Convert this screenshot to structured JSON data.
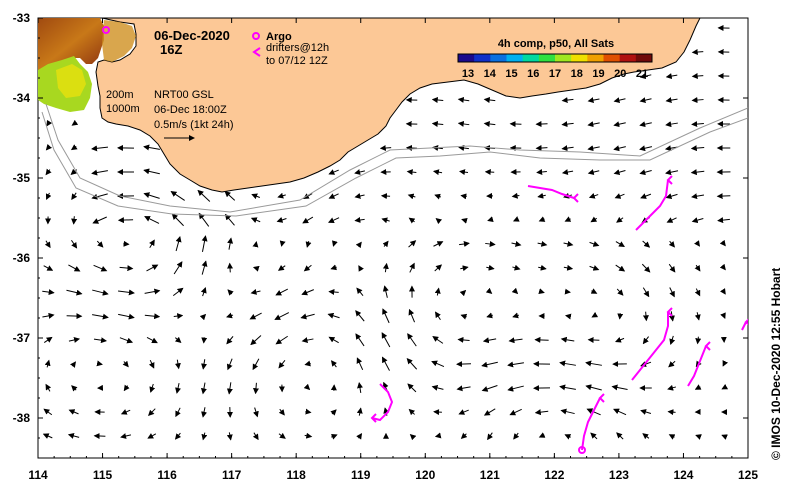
{
  "title": {
    "date": "06-Dec-2020",
    "hour": "16Z"
  },
  "legend": {
    "argo_label": "Argo",
    "drifters_line1": "drifters@12h",
    "drifters_line2": "to 07/12 12Z",
    "argo_color": "#ff00ff"
  },
  "info": {
    "isobath_1": "200m",
    "isobath_2": "1000m",
    "product": "NRT00 GSL",
    "product_time": "06-Dec 18:00Z",
    "scale_text": "0.5m/s (1kt 24h)"
  },
  "colorbar": {
    "title": "4h comp, p50, All Sats",
    "ticks": [
      "13",
      "14",
      "15",
      "16",
      "17",
      "18",
      "19",
      "20",
      "21"
    ],
    "colors": [
      "#1a0a8c",
      "#1030c8",
      "#0a70e0",
      "#00b0f0",
      "#00d8a0",
      "#30e040",
      "#a0e820",
      "#f0e000",
      "#f0a000",
      "#e05000",
      "#b01010",
      "#700a0a"
    ]
  },
  "axes": {
    "x_ticks": [
      "114",
      "115",
      "116",
      "117",
      "118",
      "119",
      "120",
      "121",
      "122",
      "123",
      "124",
      "125"
    ],
    "y_ticks": [
      "-33",
      "-34",
      "-35",
      "-36",
      "-37",
      "-38"
    ],
    "x_range": [
      114,
      125
    ],
    "y_range": [
      -38.5,
      -33
    ]
  },
  "credit": "© IMOS 10-Dec-2020 12:55 Hobart",
  "land_color": "#fcc896"
}
